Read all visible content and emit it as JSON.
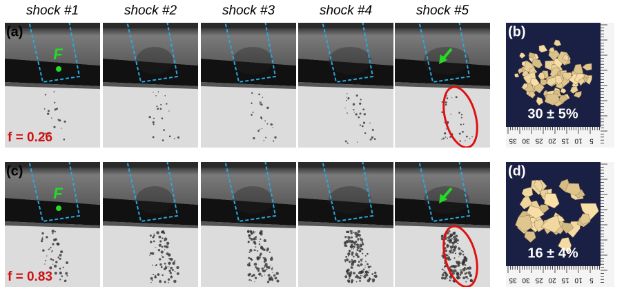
{
  "columns": [
    "shock #1",
    "shock #2",
    "shock #3",
    "shock #4",
    "shock #5"
  ],
  "rows": [
    {
      "label": "(a)",
      "f": "f = 0.26"
    },
    {
      "label": "(c)",
      "f": "f = 0.83"
    }
  ],
  "samples": [
    {
      "label": "(b)",
      "value": "30 ± 5%"
    },
    {
      "label": "(d)",
      "value": "16 ± 4%"
    }
  ],
  "marker": "F",
  "ruler_labels": [
    "35",
    "30",
    "25",
    "20",
    "15",
    "10",
    "5"
  ]
}
